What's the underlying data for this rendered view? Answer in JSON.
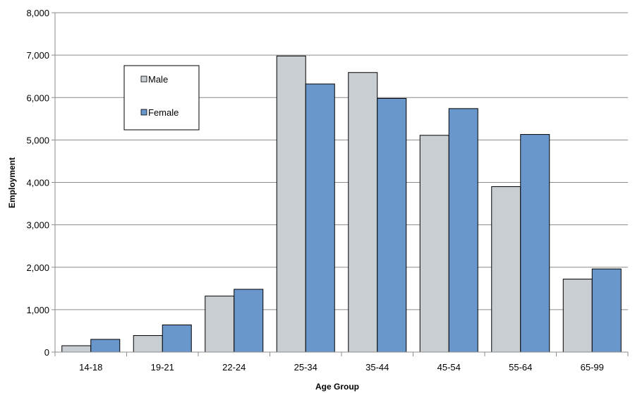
{
  "chart_data": {
    "type": "bar",
    "title": "",
    "xlabel": "Age Group",
    "ylabel": "Employment",
    "categories": [
      "14-18",
      "19-21",
      "22-24",
      "25-34",
      "35-44",
      "45-54",
      "55-64",
      "65-99"
    ],
    "series": [
      {
        "name": "Male",
        "color": "#c9ced3",
        "values": [
          150,
          390,
          1320,
          6980,
          6590,
          5110,
          3900,
          1720
        ]
      },
      {
        "name": "Female",
        "color": "#6a97cb",
        "values": [
          300,
          640,
          1480,
          6320,
          5980,
          5740,
          5130,
          1960
        ]
      }
    ],
    "ylim": [
      0,
      8000
    ],
    "yticks": [
      0,
      1000,
      2000,
      3000,
      4000,
      5000,
      6000,
      7000,
      8000
    ],
    "ytick_labels": [
      "0",
      "1,000",
      "2,000",
      "3,000",
      "4,000",
      "5,000",
      "6,000",
      "7,000",
      "8,000"
    ],
    "grid": true,
    "legend_position": "top-left"
  }
}
